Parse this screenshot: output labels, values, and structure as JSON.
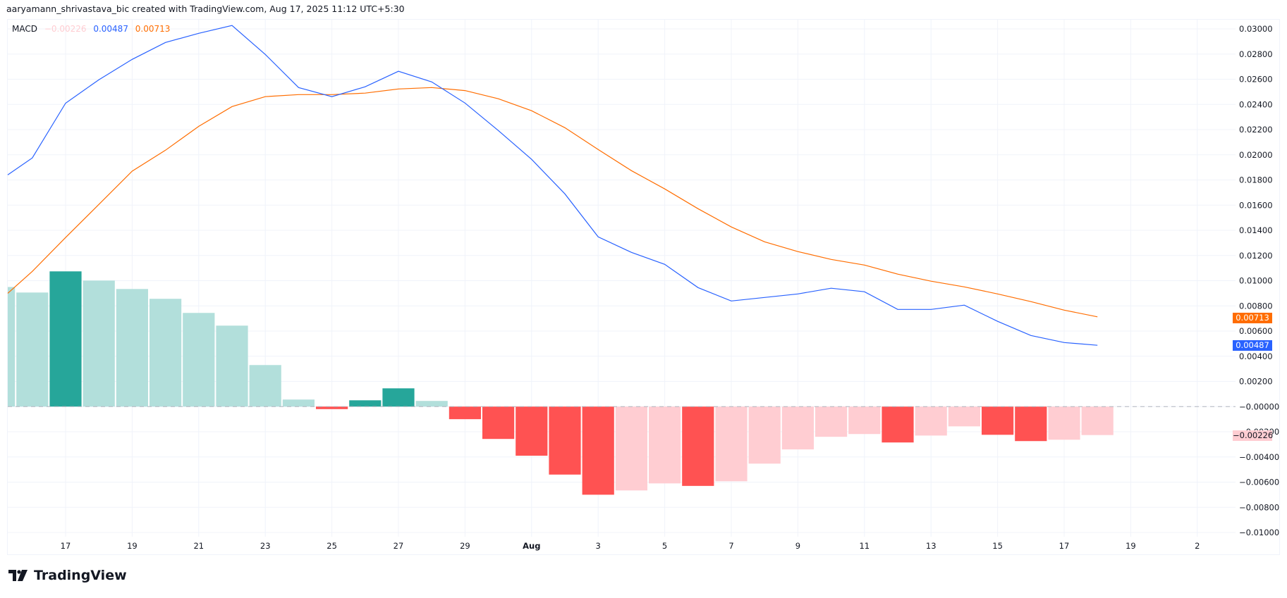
{
  "header": {
    "attribution": "aaryamann_shrivastava_bic created with TradingView.com, Aug 17, 2025 11:12 UTC+5:30"
  },
  "legend": {
    "name": "MACD",
    "histogram_value": "−0.00226",
    "macd_value": "0.00487",
    "signal_value": "0.00713"
  },
  "price_tags": {
    "signal": "0.00713",
    "macd": "0.00487",
    "histogram": "−0.00226"
  },
  "brand": {
    "logo_text": "TradingView"
  },
  "colors": {
    "macd_line": "#2962ff",
    "signal_line": "#ff6d00",
    "hist_pos_strong": "#26a69a",
    "hist_pos_weak": "#b2dfdb",
    "hist_neg_strong": "#ff5252",
    "hist_neg_weak": "#ffcdd2",
    "grid": "#f0f3fa",
    "zero_line": "#b2b5be"
  },
  "chart_data": {
    "type": "bar+line",
    "title": "MACD",
    "xlabel": "",
    "ylabel": "",
    "ylim": [
      -0.01,
      0.03
    ],
    "grid": true,
    "legend_position": "top-left",
    "x_tick_labels": [
      "17",
      "19",
      "21",
      "23",
      "25",
      "27",
      "29",
      "Aug",
      "3",
      "5",
      "7",
      "9",
      "11",
      "13",
      "15",
      "17",
      "19",
      "2"
    ],
    "y_tick_labels": [
      "0.03000",
      "0.02800",
      "0.02600",
      "0.02400",
      "0.02200",
      "0.02000",
      "0.01800",
      "0.01600",
      "0.01400",
      "0.01200",
      "0.01000",
      "0.00800",
      "0.00600",
      "0.00400",
      "0.00200",
      "−0.00000",
      "−0.00200",
      "−0.00400",
      "−0.00600",
      "−0.00800",
      "−0.01000"
    ],
    "categories": [
      "Jul 15",
      "Jul 16",
      "Jul 17",
      "Jul 18",
      "Jul 19",
      "Jul 20",
      "Jul 21",
      "Jul 22",
      "Jul 23",
      "Jul 24",
      "Jul 25",
      "Jul 26",
      "Jul 27",
      "Jul 28",
      "Jul 29",
      "Jul 30",
      "Jul 31",
      "Aug 1",
      "Aug 2",
      "Aug 3",
      "Aug 4",
      "Aug 5",
      "Aug 6",
      "Aug 7",
      "Aug 8",
      "Aug 9",
      "Aug 10",
      "Aug 11",
      "Aug 12",
      "Aug 13",
      "Aug 14",
      "Aug 15",
      "Aug 16",
      "Aug 17"
    ],
    "series": [
      {
        "name": "Histogram",
        "type": "bar",
        "values": [
          0.0095,
          0.00906,
          0.01074,
          0.01001,
          0.00934,
          0.00856,
          0.00744,
          0.00643,
          0.0033,
          0.00056,
          -0.0002,
          0.0005,
          0.00145,
          0.00045,
          -0.001,
          -0.00257,
          -0.0039,
          -0.0054,
          -0.007,
          -0.00666,
          -0.0061,
          -0.0063,
          -0.00593,
          -0.00453,
          -0.0034,
          -0.0024,
          -0.00218,
          -0.00285,
          -0.0023,
          -0.00157,
          -0.00224,
          -0.00274,
          -0.00263,
          -0.00226
        ],
        "shade": [
          "weak",
          "weak",
          "strong",
          "weak",
          "weak",
          "weak",
          "weak",
          "weak",
          "weak",
          "weak",
          "strong",
          "strong",
          "strong",
          "weak",
          "strong",
          "strong",
          "strong",
          "strong",
          "strong",
          "weak",
          "weak",
          "strong",
          "weak",
          "weak",
          "weak",
          "weak",
          "weak",
          "strong",
          "weak",
          "weak",
          "strong",
          "strong",
          "weak",
          "weak"
        ]
      },
      {
        "name": "MACD",
        "type": "line",
        "values": [
          0.0184,
          0.01975,
          0.0241,
          0.02596,
          0.02758,
          0.02892,
          0.02965,
          0.03027,
          0.02797,
          0.02534,
          0.02462,
          0.0254,
          0.02663,
          0.02579,
          0.02411,
          0.02193,
          0.01964,
          0.0169,
          0.01348,
          0.01225,
          0.0113,
          0.00945,
          0.00839,
          0.00867,
          0.00895,
          0.0094,
          0.00912,
          0.00772,
          0.00772,
          0.00806,
          0.00677,
          0.00565,
          0.00509,
          0.00487
        ]
      },
      {
        "name": "Signal",
        "type": "line",
        "values": [
          0.009,
          0.01074,
          0.01343,
          0.01606,
          0.0187,
          0.02036,
          0.02226,
          0.02383,
          0.02462,
          0.02478,
          0.02478,
          0.0249,
          0.02523,
          0.02534,
          0.0251,
          0.02445,
          0.0235,
          0.02215,
          0.02042,
          0.01874,
          0.01729,
          0.01572,
          0.01427,
          0.01309,
          0.01231,
          0.01169,
          0.01124,
          0.01052,
          0.00996,
          0.00951,
          0.00895,
          0.00834,
          0.00766,
          0.00713
        ]
      }
    ]
  }
}
